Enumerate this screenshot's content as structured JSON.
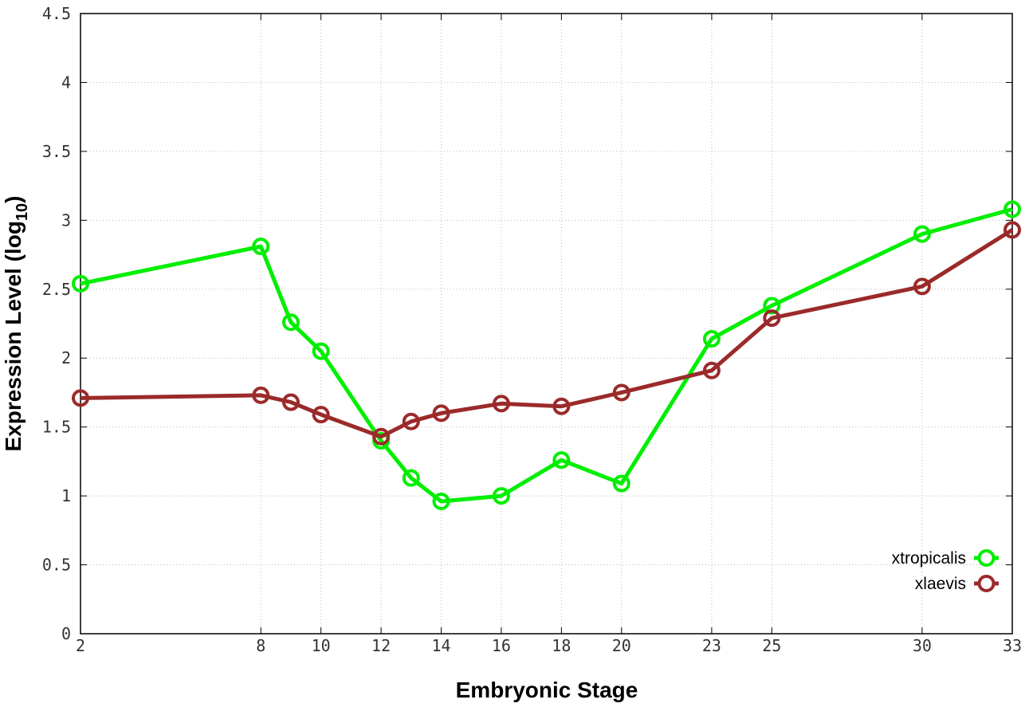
{
  "chart_data": {
    "type": "line",
    "title": "",
    "xlabel": "Embryonic Stage",
    "ylabel_main": "Expression Level (log",
    "ylabel_sub": "10",
    "ylabel_close": ")",
    "xlim": [
      2,
      33
    ],
    "ylim": [
      0,
      4.5
    ],
    "x_ticks": [
      2,
      8,
      10,
      12,
      14,
      16,
      18,
      20,
      23,
      25,
      30,
      33
    ],
    "y_ticks": [
      0,
      0.5,
      1,
      1.5,
      2,
      2.5,
      3,
      3.5,
      4,
      4.5
    ],
    "y_tick_labels": [
      "0",
      "0.5",
      "1",
      "1.5",
      "2",
      "2.5",
      "3",
      "3.5",
      "4",
      "4.5"
    ],
    "grid": true,
    "legend_position": "bottom-right",
    "x": [
      2,
      8,
      9,
      10,
      12,
      13,
      14,
      16,
      18,
      20,
      23,
      25,
      30,
      33
    ],
    "series": [
      {
        "name": "xtropicalis",
        "color": "#00ee00",
        "marker": "open-circle",
        "values": [
          2.54,
          2.81,
          2.26,
          2.05,
          1.4,
          1.13,
          0.96,
          1.0,
          1.26,
          1.09,
          2.14,
          2.38,
          2.9,
          3.08
        ]
      },
      {
        "name": "xlaevis",
        "color": "#9b2a2a",
        "marker": "open-circle",
        "values": [
          1.71,
          1.73,
          1.68,
          1.59,
          1.43,
          1.54,
          1.6,
          1.67,
          1.65,
          1.75,
          1.91,
          2.29,
          2.52,
          2.93
        ]
      }
    ]
  }
}
